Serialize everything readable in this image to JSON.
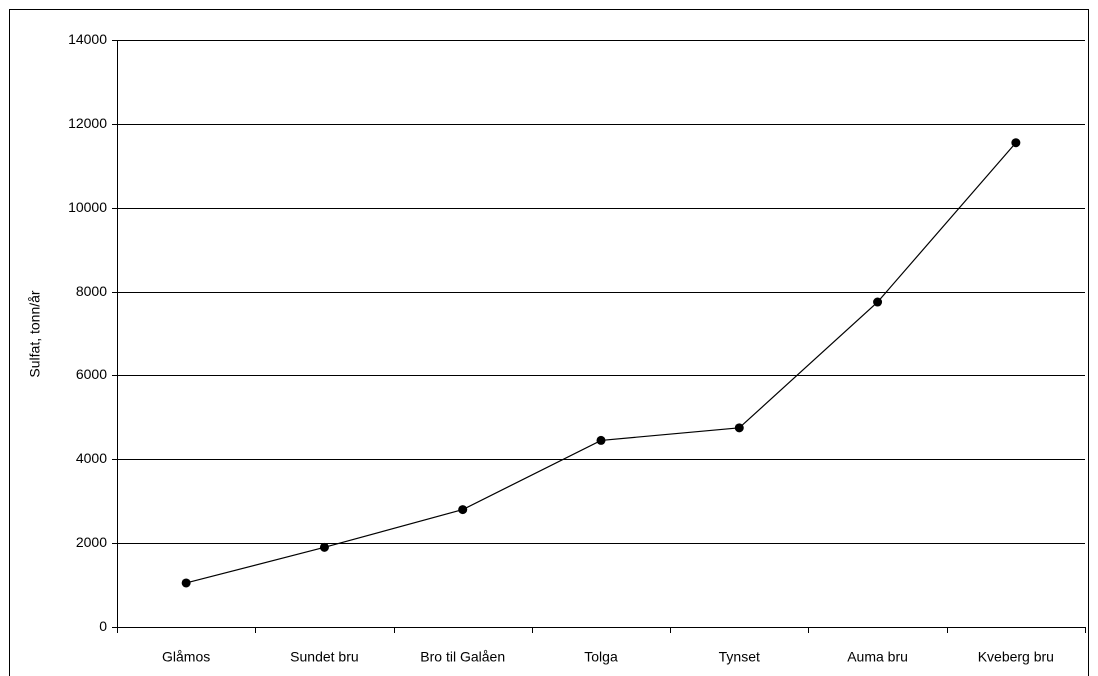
{
  "chart_data": {
    "type": "line",
    "y_label": "Sulfat, tonn/år",
    "categories": [
      "Glåmos",
      "Sundet bru",
      "Bro til Galåen",
      "Tolga",
      "Tynset",
      "Auma bru",
      "Kveberg bru"
    ],
    "values": [
      1050,
      1900,
      2800,
      4450,
      4750,
      7750,
      11550
    ],
    "color": "#000000",
    "ylim": [
      0,
      14000
    ],
    "yticks": [
      0,
      2000,
      4000,
      6000,
      8000,
      10000,
      12000,
      14000
    ],
    "grid": true
  }
}
